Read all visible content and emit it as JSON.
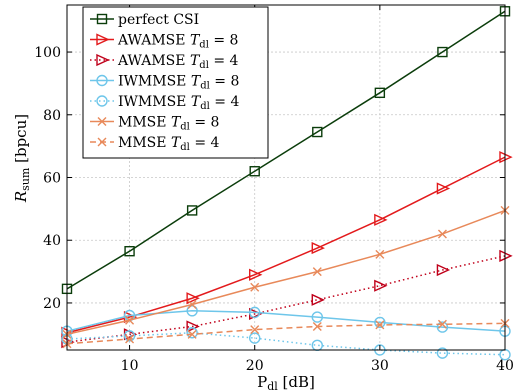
{
  "chart_data": {
    "type": "line",
    "title": "",
    "xlabel": {
      "main": "P",
      "sub": "dl",
      "unit": " [dB]"
    },
    "ylabel": {
      "main": "R",
      "sub": "sum",
      "unit": " [bpcu]"
    },
    "xlim": [
      5,
      40
    ],
    "ylim": [
      5,
      115
    ],
    "grid": true,
    "legend_position": "top-left",
    "xticks": [
      10,
      20,
      30,
      40
    ],
    "yticks": [
      20,
      40,
      60,
      80,
      100
    ],
    "x": [
      5,
      10,
      15,
      20,
      25,
      30,
      35,
      40
    ],
    "series": [
      {
        "name": "perfect CSI",
        "label": {
          "main": "perfect CSI",
          "math": "",
          "sub": "",
          "value": ""
        },
        "color": "#0b3d0b",
        "dash": "solid",
        "marker": "square",
        "values": [
          24.5,
          36.5,
          49.5,
          62,
          74.5,
          87,
          100,
          113
        ]
      },
      {
        "name": "AWAMSE T_dl = 8",
        "label": {
          "main": "AWAMSE ",
          "math": "T",
          "sub": "dl",
          "value": " = 8"
        },
        "color": "#e31a1c",
        "dash": "solid",
        "marker": "triangle-right",
        "values": [
          10.5,
          15.5,
          21.5,
          29,
          37.5,
          46.5,
          56.5,
          66.5
        ]
      },
      {
        "name": "AWAMSE T_dl = 4",
        "label": {
          "main": "AWAMSE ",
          "math": "T",
          "sub": "dl",
          "value": " = 4"
        },
        "color": "#c0001a",
        "dash": "dotted",
        "marker": "triangle-right",
        "values": [
          7.5,
          10,
          12.5,
          16.5,
          21,
          25.5,
          30.5,
          35
        ]
      },
      {
        "name": "IWMMSE T_dl = 8",
        "label": {
          "main": "IWMMSE ",
          "math": "T",
          "sub": "dl",
          "value": " = 8"
        },
        "color": "#6ec6ea",
        "dash": "solid",
        "marker": "circle",
        "values": [
          11,
          16,
          17.5,
          17,
          15.5,
          13.8,
          12.3,
          11
        ]
      },
      {
        "name": "IWMMSE T_dl = 4",
        "label": {
          "main": "IWMMSE ",
          "math": "T",
          "sub": "dl",
          "value": " = 4"
        },
        "color": "#6ec6ea",
        "dash": "dotted",
        "marker": "circle",
        "values": [
          8.5,
          9.5,
          10.5,
          8.8,
          6.5,
          5,
          4,
          3.5
        ]
      },
      {
        "name": "MMSE T_dl = 8",
        "label": {
          "main": "MMSE ",
          "math": "T",
          "sub": "dl",
          "value": " = 8"
        },
        "color": "#e8895a",
        "dash": "solid",
        "marker": "x",
        "values": [
          10,
          14.5,
          19.5,
          25,
          30,
          35.5,
          42,
          49.5
        ]
      },
      {
        "name": "MMSE T_dl = 4",
        "label": {
          "main": "MMSE ",
          "math": "T",
          "sub": "dl",
          "value": " = 4"
        },
        "color": "#e8895a",
        "dash": "dashed",
        "marker": "x",
        "values": [
          7,
          8.5,
          10,
          11.5,
          12.5,
          13,
          13.2,
          13.5
        ]
      }
    ]
  }
}
